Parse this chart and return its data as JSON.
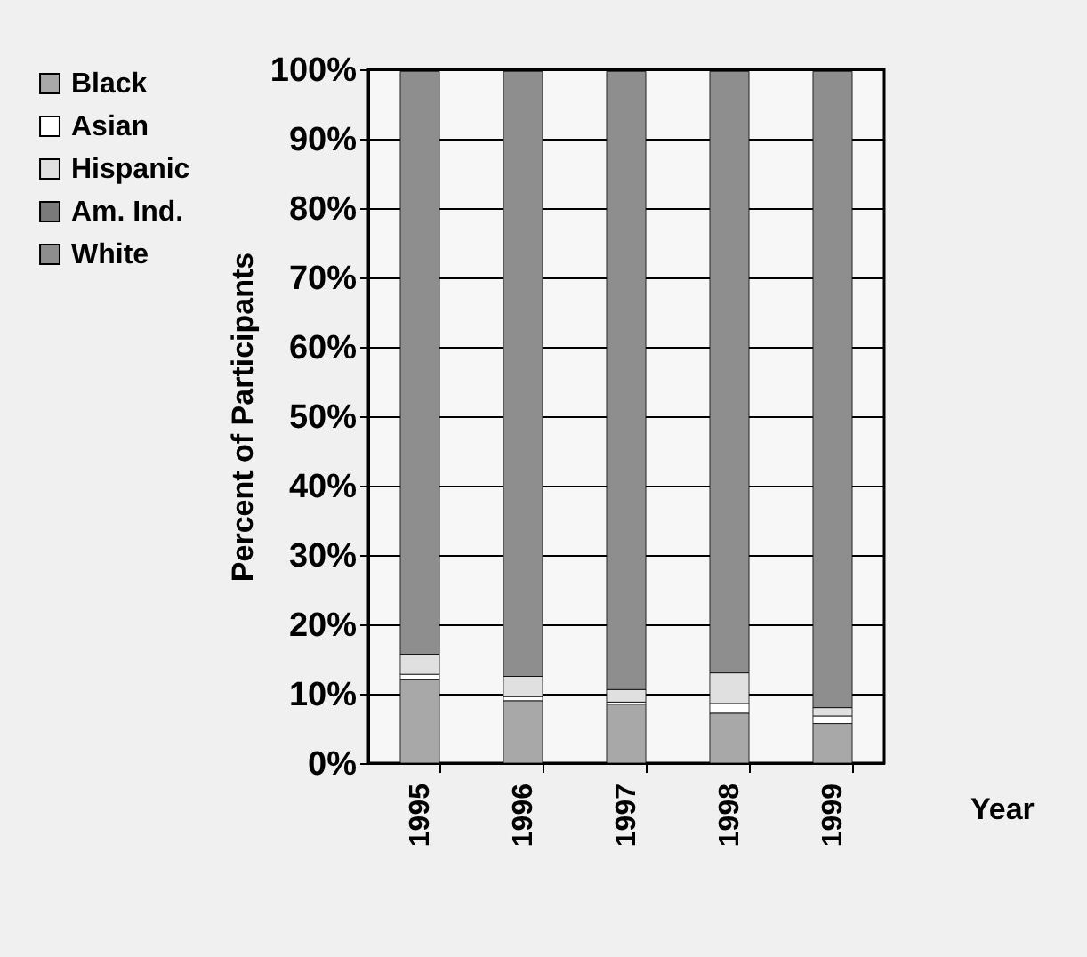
{
  "chart_data": {
    "type": "bar",
    "stacked": true,
    "xlabel": "Year",
    "ylabel": "Percent of Participants",
    "categories": [
      "1995",
      "1996",
      "1997",
      "1998",
      "1999"
    ],
    "series": [
      {
        "name": "Black",
        "color": "#a8a8a8",
        "values": [
          12.1,
          9.0,
          8.5,
          7.2,
          5.7
        ]
      },
      {
        "name": "Asian",
        "color": "#ffffff",
        "values": [
          0.7,
          0.6,
          0.3,
          1.4,
          1.1
        ]
      },
      {
        "name": "Hispanic",
        "color": "#e0e0e0",
        "values": [
          2.9,
          2.9,
          1.8,
          4.4,
          1.2
        ]
      },
      {
        "name": "Am. Ind.",
        "color": "#7a7a7a",
        "values": [
          null,
          null,
          null,
          null,
          null
        ]
      },
      {
        "name": "White",
        "color": "#8e8e8e",
        "values": [
          84.0,
          87.2,
          89.1,
          86.7,
          91.7
        ]
      }
    ],
    "ylim": [
      0,
      100
    ],
    "yticks": [
      {
        "value": 0,
        "label": "0%"
      },
      {
        "value": 10,
        "label": "10%"
      },
      {
        "value": 20,
        "label": "20%"
      },
      {
        "value": 30,
        "label": "30%"
      },
      {
        "value": 40,
        "label": "40%"
      },
      {
        "value": 50,
        "label": "50%"
      },
      {
        "value": 60,
        "label": "60%"
      },
      {
        "value": 70,
        "label": "70%"
      },
      {
        "value": 80,
        "label": "80%"
      },
      {
        "value": 90,
        "label": "90%"
      },
      {
        "value": 100,
        "label": "100%"
      }
    ],
    "grid": "y",
    "legend": "top left"
  }
}
